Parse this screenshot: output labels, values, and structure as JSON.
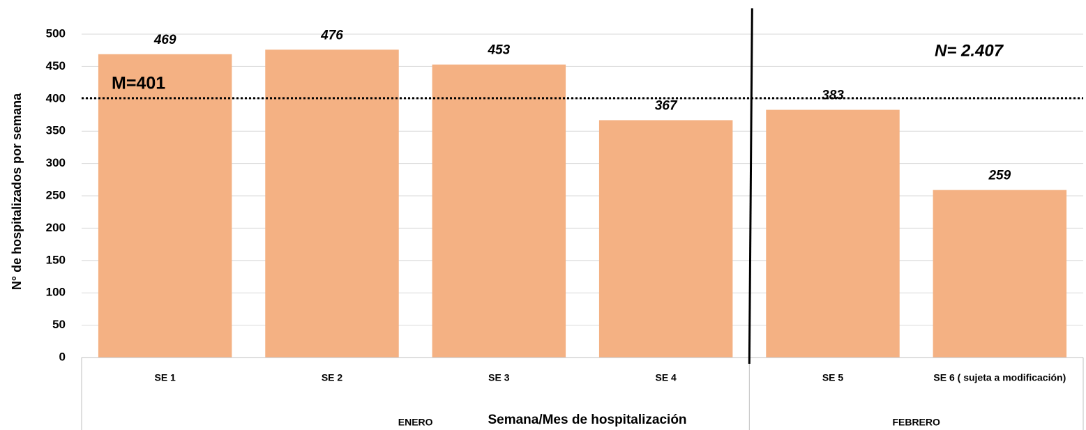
{
  "chart_data": {
    "type": "bar",
    "y_label": "N° de hospitalizados  por semana",
    "x_label": "Semana/Mes de hospitalización",
    "categories": [
      "SE 1",
      "SE 2",
      "SE 3",
      "SE 4",
      "SE 5",
      "SE 6 ( sujeta a modificación)"
    ],
    "values": [
      469,
      476,
      453,
      367,
      383,
      259
    ],
    "color": "#f4b183",
    "ylim": [
      0,
      500
    ],
    "yticks": [
      0,
      50,
      100,
      150,
      200,
      250,
      300,
      350,
      400,
      450,
      500
    ],
    "grid": true,
    "groups": [
      {
        "name": "ENERO",
        "span": 4
      },
      {
        "name": "FEBRERO",
        "span": 2
      }
    ],
    "mean_line": {
      "value": 401,
      "label": "M=401"
    },
    "annotation": "N= 2.407"
  }
}
